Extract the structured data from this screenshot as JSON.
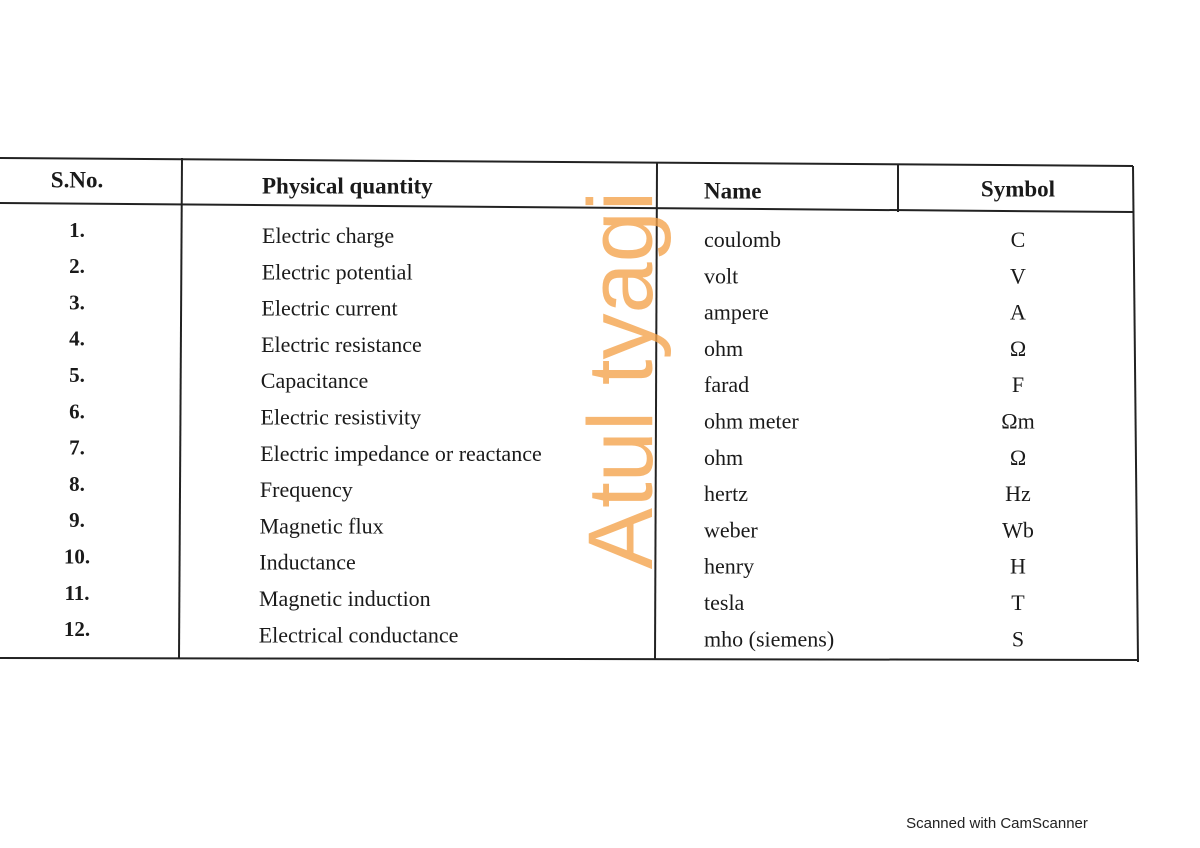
{
  "table": {
    "headers": [
      "S.No.",
      "Physical quantity",
      "Name",
      "Symbol"
    ],
    "rows": [
      [
        "1.",
        "Electric charge",
        "coulomb",
        "C"
      ],
      [
        "2.",
        "Electric potential",
        "volt",
        "V"
      ],
      [
        "3.",
        "Electric current",
        "ampere",
        "A"
      ],
      [
        "4.",
        "Electric resistance",
        "ohm",
        "Ω"
      ],
      [
        "5.",
        "Capacitance",
        "farad",
        "F"
      ],
      [
        "6.",
        "Electric resistivity",
        "ohm meter",
        "Ωm"
      ],
      [
        "7.",
        "Electric impedance or reactance",
        "ohm",
        "Ω"
      ],
      [
        "8.",
        "Frequency",
        "hertz",
        "Hz"
      ],
      [
        "9.",
        "Magnetic flux",
        "weber",
        "Wb"
      ],
      [
        "10.",
        "Inductance",
        "henry",
        "H"
      ],
      [
        "11.",
        "Magnetic induction",
        "tesla",
        "T"
      ],
      [
        "12.",
        "Electrical conductance",
        "mho (siemens)",
        "S"
      ]
    ]
  },
  "watermark": "Atul tyagi",
  "footer": "Scanned with CamScanner"
}
